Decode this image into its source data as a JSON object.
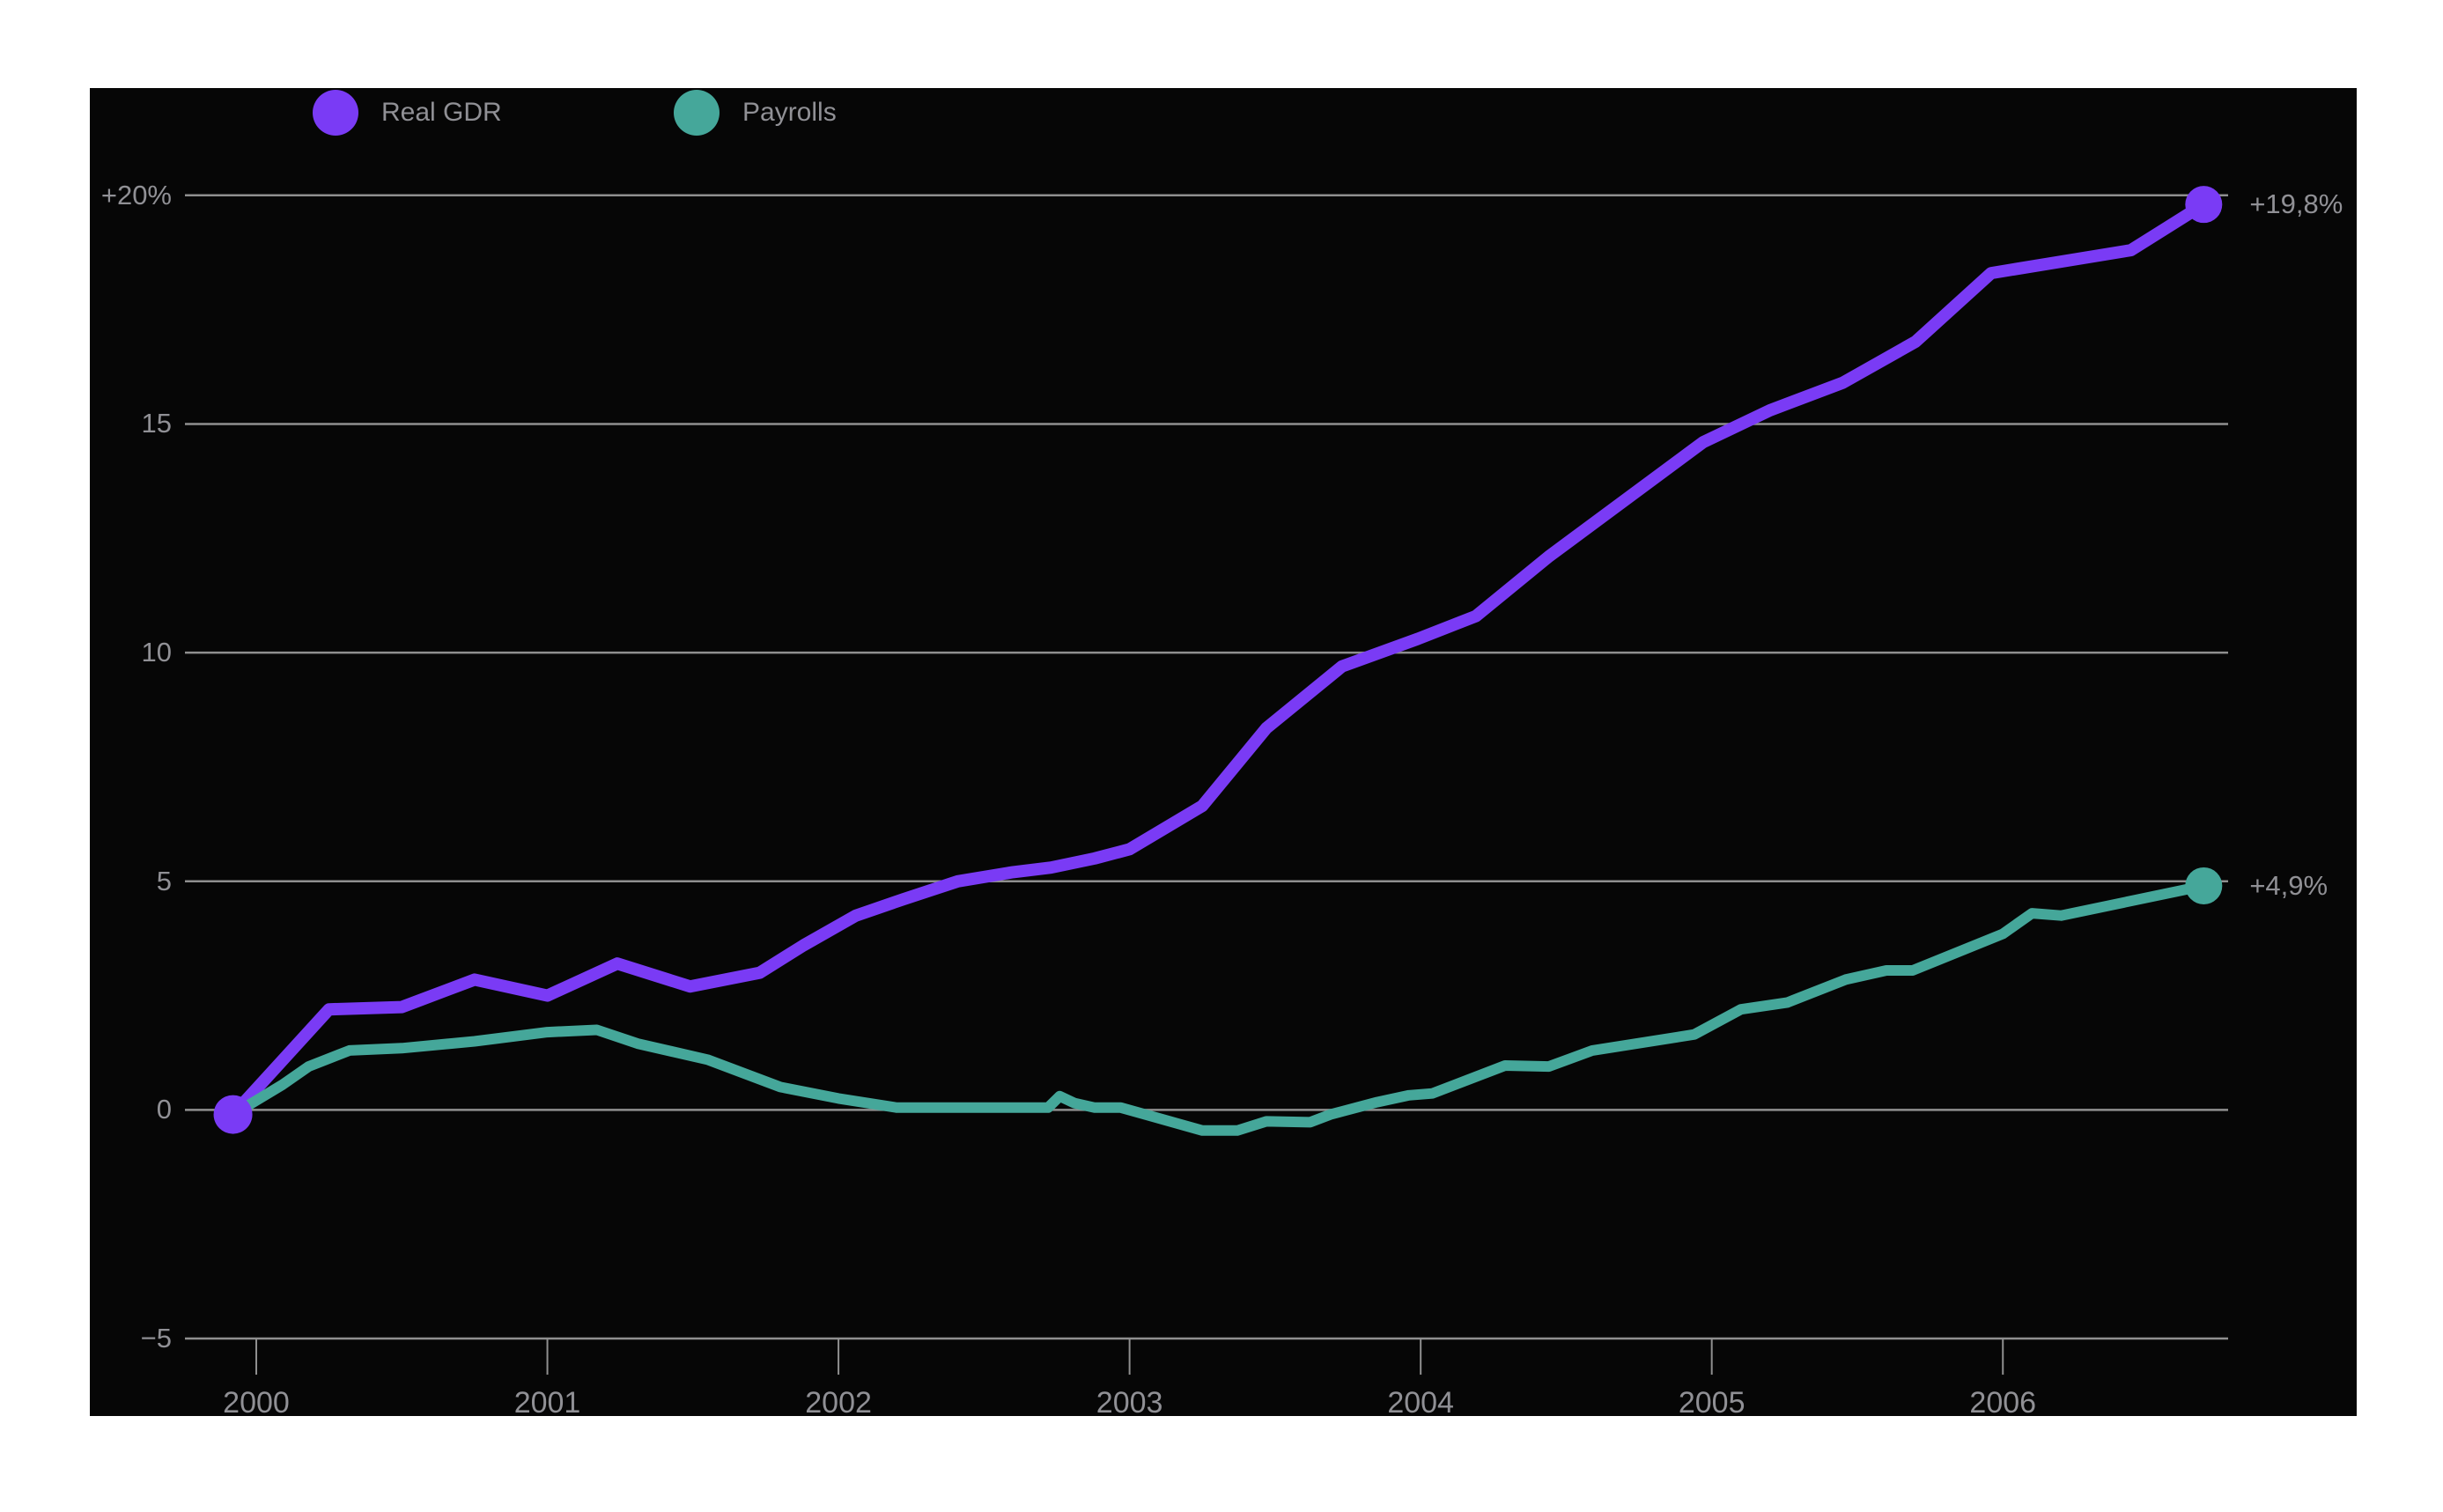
{
  "colors": {
    "background": "#ffffff",
    "panel": "#060606",
    "grid": "#8f8f8f",
    "axis_text": "#909095",
    "real_gdr": "#7a3bf5",
    "payrolls": "#45a79a"
  },
  "legend": {
    "items": [
      {
        "label": "Real GDR",
        "color": "#7a3bf5"
      },
      {
        "label": "Payrolls",
        "color": "#45a79a"
      }
    ]
  },
  "chart_data": {
    "type": "line",
    "title": "",
    "xlabel": "",
    "ylabel": "",
    "grid": true,
    "legend_position": "top-left",
    "x_unit": "decimal_year",
    "x_range": [
      1999.92,
      2006.69
    ],
    "ylim": [
      -5,
      20
    ],
    "y_axis": {
      "ticks": [
        {
          "label": "+20%",
          "value": 20
        },
        {
          "label": "15",
          "value": 15
        },
        {
          "label": "10",
          "value": 10
        },
        {
          "label": "5",
          "value": 5
        },
        {
          "label": "0",
          "value": 0
        },
        {
          "label": "−5",
          "value": -5
        }
      ]
    },
    "x_axis": {
      "ticks": [
        {
          "label": "2000",
          "value": 2000
        },
        {
          "label": "2001",
          "value": 2001
        },
        {
          "label": "2002",
          "value": 2002
        },
        {
          "label": "2003",
          "value": 2003
        },
        {
          "label": "2004",
          "value": 2004
        },
        {
          "label": "2005",
          "value": 2005
        },
        {
          "label": "2006",
          "value": 2006
        }
      ]
    },
    "series": [
      {
        "name": "Real GDR",
        "color": "#7a3bf5",
        "end_label": "+19,8%",
        "start_dot": true,
        "end_dot": true,
        "points": [
          [
            1999.92,
            -0.1
          ],
          [
            2000.25,
            2.2
          ],
          [
            2000.5,
            2.25
          ],
          [
            2000.75,
            2.85
          ],
          [
            2001.0,
            2.5
          ],
          [
            2001.24,
            3.2
          ],
          [
            2001.49,
            2.7
          ],
          [
            2001.73,
            3.0
          ],
          [
            2001.88,
            3.6
          ],
          [
            2002.06,
            4.25
          ],
          [
            2002.22,
            4.6
          ],
          [
            2002.41,
            5.0
          ],
          [
            2002.6,
            5.2
          ],
          [
            2002.73,
            5.3
          ],
          [
            2002.88,
            5.5
          ],
          [
            2003.0,
            5.7
          ],
          [
            2003.25,
            6.65
          ],
          [
            2003.47,
            8.35
          ],
          [
            2003.73,
            9.7
          ],
          [
            2003.99,
            10.3
          ],
          [
            2004.19,
            10.8
          ],
          [
            2004.44,
            12.1
          ],
          [
            2004.97,
            14.6
          ],
          [
            2005.2,
            15.3
          ],
          [
            2005.45,
            15.9
          ],
          [
            2005.7,
            16.8
          ],
          [
            2005.96,
            18.3
          ],
          [
            2006.44,
            18.8
          ],
          [
            2006.69,
            19.8
          ]
        ]
      },
      {
        "name": "Payrolls",
        "color": "#45a79a",
        "end_label": "+4,9%",
        "start_dot": false,
        "end_dot": true,
        "points": [
          [
            1999.92,
            -0.1
          ],
          [
            2000.09,
            0.55
          ],
          [
            2000.18,
            0.95
          ],
          [
            2000.32,
            1.3
          ],
          [
            2000.5,
            1.35
          ],
          [
            2000.75,
            1.5
          ],
          [
            2001.0,
            1.7
          ],
          [
            2001.17,
            1.75
          ],
          [
            2001.31,
            1.45
          ],
          [
            2001.55,
            1.1
          ],
          [
            2001.8,
            0.5
          ],
          [
            2002.0,
            0.25
          ],
          [
            2002.2,
            0.05
          ],
          [
            2002.72,
            0.05
          ],
          [
            2002.76,
            0.3
          ],
          [
            2002.81,
            0.15
          ],
          [
            2002.88,
            0.05
          ],
          [
            2002.97,
            0.05
          ],
          [
            2003.25,
            -0.45
          ],
          [
            2003.37,
            -0.45
          ],
          [
            2003.47,
            -0.25
          ],
          [
            2003.62,
            -0.27
          ],
          [
            2003.69,
            -0.1
          ],
          [
            2003.85,
            0.17
          ],
          [
            2003.96,
            0.32
          ],
          [
            2004.04,
            0.36
          ],
          [
            2004.29,
            0.97
          ],
          [
            2004.44,
            0.95
          ],
          [
            2004.59,
            1.3
          ],
          [
            2004.94,
            1.65
          ],
          [
            2005.1,
            2.2
          ],
          [
            2005.26,
            2.35
          ],
          [
            2005.46,
            2.85
          ],
          [
            2005.6,
            3.05
          ],
          [
            2005.69,
            3.05
          ],
          [
            2006.0,
            3.85
          ],
          [
            2006.1,
            4.3
          ],
          [
            2006.2,
            4.25
          ],
          [
            2006.69,
            4.9
          ]
        ]
      }
    ]
  }
}
